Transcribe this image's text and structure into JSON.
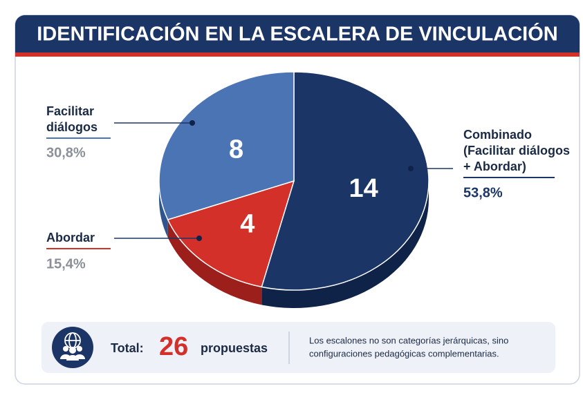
{
  "chart_data": {
    "type": "pie",
    "title": "IDENTIFICACIÓN EN LA ESCALERA DE VINCULACIÓN",
    "categories": [
      [
        "Combinado",
        "(Facilitar diálogos",
        "+ Abordar)"
      ],
      [
        "Abordar"
      ],
      [
        "Facilitar",
        "diálogos"
      ]
    ],
    "values": [
      14,
      4,
      8
    ],
    "percent_labels": [
      "53,8%",
      "15,4%",
      "30,8%"
    ],
    "colors": [
      "#1b3566",
      "#d3302a",
      "#4a74b4"
    ],
    "side_colors": [
      "#0f2248",
      "#9c1f1b",
      "#30558e"
    ]
  },
  "footer": {
    "total_label": "Total:",
    "total": 26,
    "unit": "propuestas",
    "note": [
      "Los escalones no son categorías jerárquicas, sino",
      "configuraciones pedagógicas complementarias."
    ]
  }
}
